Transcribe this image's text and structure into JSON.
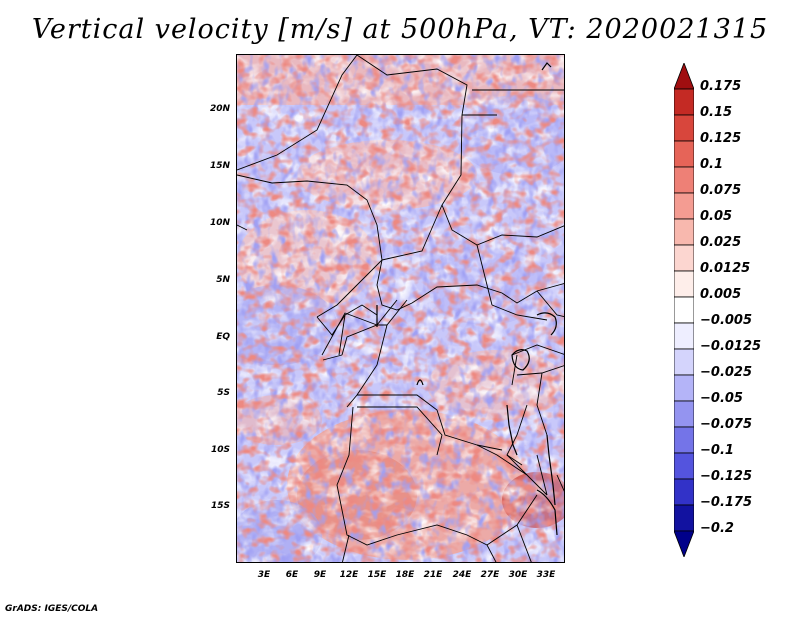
{
  "title": "Vertical velocity [m/s] at 500hPa, VT: 2020021315",
  "y_ticks": [
    "20N",
    "15N",
    "10N",
    "5N",
    "EQ",
    "5S",
    "10S",
    "15S"
  ],
  "x_ticks": [
    "3E",
    "6E",
    "9E",
    "12E",
    "15E",
    "18E",
    "21E",
    "24E",
    "27E",
    "30E",
    "33E"
  ],
  "colorbar": {
    "labels": [
      "0.175",
      "0.15",
      "0.125",
      "0.1",
      "0.075",
      "0.05",
      "0.025",
      "0.0125",
      "0.005",
      "−0.005",
      "−0.0125",
      "−0.025",
      "−0.05",
      "−0.075",
      "−0.1",
      "−0.125",
      "−0.175",
      "−0.2"
    ],
    "colors": [
      "#a00e10",
      "#c42a24",
      "#d8463c",
      "#e66458",
      "#ee8076",
      "#f49c92",
      "#f8b8ae",
      "#fcd6d0",
      "#feeeea",
      "#ffffff",
      "#eeeeff",
      "#d4d4fc",
      "#b4b4f8",
      "#9494f0",
      "#7474e8",
      "#5454de",
      "#3232c8",
      "#1212a0",
      "#00008a"
    ]
  },
  "credit": "GrADS: IGES/COLA"
}
